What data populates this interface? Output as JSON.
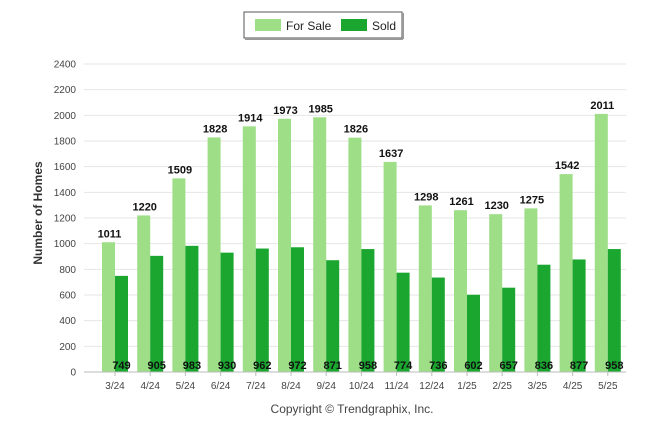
{
  "chart_data": {
    "type": "bar",
    "ylabel": "Number of Homes",
    "ylim": [
      0,
      2400
    ],
    "yticks": [
      0,
      200,
      400,
      600,
      800,
      1000,
      1200,
      1400,
      1600,
      1800,
      2000,
      2200,
      2400
    ],
    "categories": [
      "3/24",
      "4/24",
      "5/24",
      "6/24",
      "7/24",
      "8/24",
      "9/24",
      "10/24",
      "11/24",
      "12/24",
      "1/25",
      "2/25",
      "3/25",
      "4/25",
      "5/25"
    ],
    "series": [
      {
        "name": "For Sale",
        "color": "#9ede87",
        "values": [
          1011,
          1220,
          1509,
          1828,
          1914,
          1973,
          1985,
          1826,
          1637,
          1298,
          1261,
          1230,
          1275,
          1542,
          2011
        ]
      },
      {
        "name": "Sold",
        "color": "#1aa62f",
        "values": [
          749,
          905,
          983,
          930,
          962,
          972,
          871,
          958,
          774,
          736,
          602,
          657,
          836,
          877,
          958
        ]
      }
    ],
    "grid": true,
    "legend_position": "top-center",
    "credit": "Copyright © Trendgraphix, Inc."
  }
}
